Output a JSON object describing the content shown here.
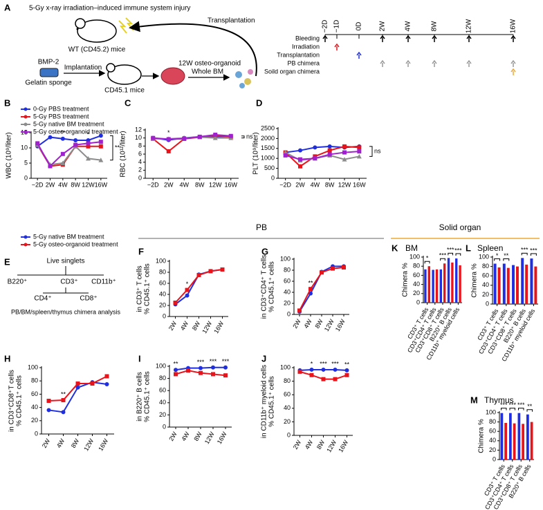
{
  "panel_a": {
    "label": "A",
    "title": "5-Gy x-ray irradiation–induced immune system injury",
    "wt_mice": "WT (CD45.2) mice",
    "transplantation": "Transplantation",
    "bmp": "BMP-2",
    "implantation": "Implantation",
    "sponge": "Gelatin sponge",
    "recipient": "CD45.1 mice",
    "organoid": "12W osteo-organoid",
    "whole_bm": "Whole BM",
    "timeline": {
      "times": [
        "−2D",
        "−1D",
        "0D",
        "2W",
        "4W",
        "8W",
        "12W",
        "16W"
      ],
      "rows": [
        "Bleeding",
        "Irradiation",
        "Transplantation",
        "PB chimera",
        "Soild organ chimera"
      ]
    }
  },
  "panel_e": {
    "label": "E",
    "root": "Live singlets",
    "level1": [
      "B220⁺",
      "CD3⁺",
      "CD11b⁺"
    ],
    "level2": [
      "CD4⁺",
      "CD8⁺"
    ],
    "footer": "PB/BM/spleen/thymus chimera analysis"
  },
  "section_headers": [
    "PB",
    "Solid organ"
  ],
  "chart_data": [
    {
      "type": "line",
      "panel": "B",
      "ylabel": [
        "WBC (10⁹/liter)"
      ],
      "categories": [
        "−2D",
        "2W",
        "4W",
        "8W",
        "12W",
        "16W"
      ],
      "ylim": [
        0,
        15
      ],
      "yticks": [
        0,
        5,
        10,
        15
      ],
      "legend": "top-left",
      "series": [
        {
          "name": "0-Gy PBS treatment",
          "color": "#1f2fe0",
          "values": [
            10.5,
            13.5,
            13,
            12.5,
            12.5,
            14
          ]
        },
        {
          "name": "5-Gy PBS treatment",
          "color": "#e8141c",
          "values": [
            11,
            4,
            4.5,
            10.5,
            10.5,
            10.5
          ]
        },
        {
          "name": "5-Gy native BM treatment",
          "color": "#8c8c8c",
          "values": [
            11,
            4.5,
            5,
            10.5,
            6.5,
            6
          ]
        },
        {
          "name": "5-Gy osteo-organoid treatment",
          "color": "#a020d0",
          "values": [
            11.5,
            4,
            8,
            11,
            11.5,
            12
          ]
        }
      ],
      "annotations": [
        {
          "category": "4W",
          "label": "**"
        },
        {
          "category": "12W",
          "label": "*"
        },
        {
          "label": "**"
        }
      ]
    },
    {
      "type": "line",
      "panel": "C",
      "ylabel": [
        "RBC (10¹²/liter)"
      ],
      "categories": [
        "−2D",
        "2W",
        "4W",
        "8W",
        "12W",
        "16W"
      ],
      "ylim": [
        0,
        12
      ],
      "yticks": [
        0,
        2,
        4,
        6,
        8,
        10,
        12
      ],
      "series": [
        {
          "color": "#1f2fe0",
          "values": [
            10,
            9.5,
            10,
            10.3,
            10.3,
            10.4
          ]
        },
        {
          "color": "#e8141c",
          "values": [
            9.8,
            6.7,
            9.8,
            10.2,
            10.5,
            10.3
          ]
        },
        {
          "color": "#8c8c8c",
          "values": [
            9.8,
            9.8,
            10,
            10.2,
            10,
            10
          ]
        },
        {
          "color": "#a020d0",
          "values": [
            10,
            9.7,
            9.8,
            10.3,
            10.8,
            10.5
          ]
        }
      ],
      "annotations": [
        {
          "category": "2W",
          "label": "*"
        },
        {
          "label": "ns"
        }
      ]
    },
    {
      "type": "line",
      "panel": "D",
      "ylabel": [
        "PLT (10⁹/liter)"
      ],
      "categories": [
        "−2D",
        "2W",
        "4W",
        "8W",
        "12W",
        "16W"
      ],
      "ylim": [
        0,
        2500
      ],
      "yticks": [
        0,
        500,
        1000,
        1500,
        2000,
        2500
      ],
      "series": [
        {
          "color": "#1f2fe0",
          "values": [
            1300,
            1400,
            1550,
            1600,
            1550,
            1600
          ]
        },
        {
          "color": "#e8141c",
          "values": [
            1300,
            600,
            1100,
            1400,
            1600,
            1550
          ]
        },
        {
          "color": "#8c8c8c",
          "values": [
            1300,
            900,
            1000,
            1150,
            950,
            1100
          ]
        },
        {
          "color": "#a020d0",
          "values": [
            1150,
            950,
            1000,
            1200,
            1300,
            1350
          ]
        }
      ],
      "annotations": [
        {
          "label": "ns"
        }
      ]
    },
    {
      "type": "line",
      "panel": "F",
      "ylabel": [
        "% CD45.1⁺ cells",
        "in CD3⁺ T cells"
      ],
      "categories": [
        "2W",
        "4W",
        "8W",
        "12W",
        "16W"
      ],
      "ylim": [
        0,
        100
      ],
      "yticks": [
        0,
        20,
        40,
        60,
        80,
        100
      ],
      "x_tick_rotation": -60,
      "legend": "outside-top-left",
      "series": [
        {
          "name": "5-Gy native BM treatment",
          "color": "#1f2fe0",
          "values": [
            22,
            38,
            76,
            82,
            85
          ]
        },
        {
          "name": "5-Gy osteo-organoid treatment",
          "color": "#e8141c",
          "values": [
            25,
            48,
            75,
            82,
            85
          ]
        }
      ],
      "annotations": [
        {
          "category": "4W",
          "label": "*"
        }
      ]
    },
    {
      "type": "line",
      "panel": "G",
      "ylabel": [
        "% CD45.1⁺ cells",
        "in CD3⁺CD4⁺ T cells"
      ],
      "categories": [
        "2W",
        "4W",
        "8W",
        "12W",
        "16W"
      ],
      "ylim": [
        0,
        100
      ],
      "yticks": [
        0,
        20,
        40,
        60,
        80,
        100
      ],
      "x_tick_rotation": -60,
      "series": [
        {
          "color": "#1f2fe0",
          "values": [
            5,
            38,
            77,
            87,
            87
          ]
        },
        {
          "color": "#e8141c",
          "values": [
            7,
            46,
            76,
            83,
            85
          ]
        }
      ],
      "annotations": [
        {
          "category": "4W",
          "label": "**"
        }
      ]
    },
    {
      "type": "line",
      "panel": "H",
      "ylabel": [
        "% CD45.1⁺ cells",
        "in CD3⁺CD8⁺T cells"
      ],
      "categories": [
        "2W",
        "4W",
        "8W",
        "12W",
        "16W"
      ],
      "ylim": [
        0,
        100
      ],
      "yticks": [
        0,
        20,
        40,
        60,
        80,
        100
      ],
      "x_tick_rotation": -60,
      "series": [
        {
          "color": "#1f2fe0",
          "values": [
            36,
            33,
            70,
            78,
            75
          ]
        },
        {
          "color": "#e8141c",
          "values": [
            50,
            51,
            76,
            76,
            87
          ]
        }
      ],
      "annotations": [
        {
          "category": "4W",
          "label": "**"
        }
      ]
    },
    {
      "type": "line",
      "panel": "I",
      "ylabel": [
        "% CD45.1⁺ cells",
        "in B220⁺ B cells"
      ],
      "categories": [
        "2W",
        "4W",
        "8W",
        "12W",
        "16W"
      ],
      "ylim": [
        0,
        100
      ],
      "yticks": [
        0,
        20,
        40,
        60,
        80,
        100
      ],
      "x_tick_rotation": -60,
      "series": [
        {
          "color": "#1f2fe0",
          "values": [
            94,
            97,
            97,
            98,
            98
          ]
        },
        {
          "color": "#e8141c",
          "values": [
            87,
            93,
            89,
            87,
            85
          ]
        }
      ],
      "annotations": [
        {
          "category": "2W",
          "label": "**"
        },
        {
          "category": "8W",
          "label": "***"
        },
        {
          "category": "12W",
          "label": "***"
        },
        {
          "category": "16W",
          "label": "***"
        }
      ]
    },
    {
      "type": "line",
      "panel": "J",
      "ylabel": [
        "% CD45.1⁺ cells",
        "in CD11b⁺ myeloid cells"
      ],
      "categories": [
        "2W",
        "4W",
        "8W",
        "12W",
        "16W"
      ],
      "ylim": [
        0,
        100
      ],
      "yticks": [
        0,
        20,
        40,
        60,
        80,
        100
      ],
      "x_tick_rotation": -60,
      "series": [
        {
          "color": "#1f2fe0",
          "values": [
            96,
            97,
            97,
            97,
            96
          ]
        },
        {
          "color": "#e8141c",
          "values": [
            94,
            89,
            83,
            83,
            89
          ]
        }
      ],
      "annotations": [
        {
          "category": "4W",
          "label": "*"
        },
        {
          "category": "8W",
          "label": "***"
        },
        {
          "category": "12W",
          "label": "***"
        },
        {
          "category": "16W",
          "label": "**"
        }
      ]
    },
    {
      "type": "bar",
      "panel": "K",
      "title": "BM",
      "ylabel": [
        "Chimera %"
      ],
      "categories": [
        "CD3⁺ T cells",
        "CD3⁺CD4⁺ T cells",
        "CD3⁺CD8⁺ T cells",
        "B220⁺ B cells",
        "CD11b⁺ myeloid cells"
      ],
      "ylim": [
        0,
        100
      ],
      "yticks": [
        0,
        20,
        40,
        60,
        80,
        100
      ],
      "x_tick_rotation": -60,
      "series": [
        {
          "color": "#1f2fe0",
          "values": [
            73,
            72,
            73,
            98,
            97
          ]
        },
        {
          "color": "#e8141c",
          "values": [
            80,
            73,
            86,
            88,
            82
          ]
        }
      ],
      "annotations": [
        {
          "category": "CD3⁺ T cells",
          "label": "*"
        },
        {
          "category": "CD3⁺CD8⁺ T cells",
          "label": "***"
        },
        {
          "category": "B220⁺ B cells",
          "label": "***"
        },
        {
          "category": "CD11b⁺ myeloid cells",
          "label": "***"
        }
      ]
    },
    {
      "type": "bar",
      "panel": "L",
      "title": "Spleen",
      "ylabel": [
        "Chimera %"
      ],
      "categories": [
        "CD3⁺ T cells",
        "CD3⁺CD4⁺ T cells",
        "CD3⁺CD8⁺ T cells",
        "B220⁺ B cells",
        "CD11b⁺ myeloid cells"
      ],
      "ylim": [
        0,
        100
      ],
      "yticks": [
        0,
        20,
        40,
        60,
        80,
        100
      ],
      "x_tick_rotation": -60,
      "series": [
        {
          "color": "#1f2fe0",
          "values": [
            86,
            86,
            83,
            98,
            97
          ]
        },
        {
          "color": "#e8141c",
          "values": [
            78,
            77,
            80,
            84,
            80
          ]
        }
      ],
      "annotations": [
        {
          "category": "CD3⁺ T cells",
          "label": "*"
        },
        {
          "category": "CD3⁺CD4⁺ T cells",
          "label": "**"
        },
        {
          "category": "B220⁺ B cells",
          "label": "***"
        },
        {
          "category": "CD11b⁺ myeloid cells",
          "label": "***"
        }
      ]
    },
    {
      "type": "bar",
      "panel": "M",
      "title": "Thymus",
      "ylabel": [
        "Chimera %"
      ],
      "categories": [
        "CD3⁺ T cells",
        "CD3⁺CD4⁺ T cells",
        "CD3⁺CD8⁺ T cells",
        "B220⁺ B cells"
      ],
      "ylim": [
        0,
        100
      ],
      "yticks": [
        0,
        20,
        40,
        60,
        80,
        100
      ],
      "x_tick_rotation": -60,
      "series": [
        {
          "color": "#1f2fe0",
          "values": [
            99,
            99,
            99,
            96
          ]
        },
        {
          "color": "#e8141c",
          "values": [
            78,
            77,
            76,
            80
          ]
        }
      ],
      "annotations": [
        {
          "category": "CD3⁺ T cells",
          "label": "***"
        },
        {
          "category": "CD3⁺CD4⁺ T cells",
          "label": "***"
        },
        {
          "category": "CD3⁺CD8⁺ T cells",
          "label": "***"
        },
        {
          "category": "B220⁺ B cells",
          "label": "**"
        }
      ]
    }
  ]
}
